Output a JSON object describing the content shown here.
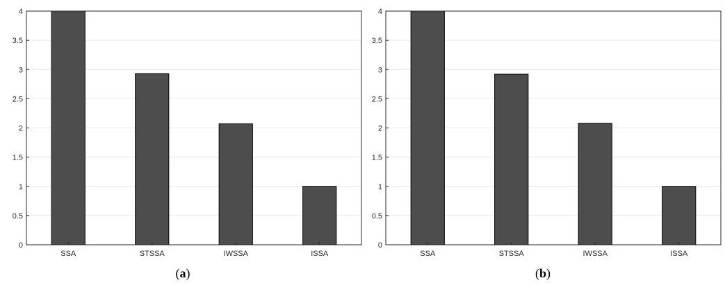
{
  "chart_data": [
    {
      "type": "bar",
      "panel_label": "a",
      "categories": [
        "SSA",
        "STSSA",
        "IWSSA",
        "ISSA"
      ],
      "values": [
        4.0,
        2.93,
        2.07,
        1.0
      ],
      "ylim": [
        0,
        4
      ],
      "yticks": [
        "0",
        "0.5",
        "1",
        "1.5",
        "2",
        "2.5",
        "3",
        "3.5",
        "4"
      ],
      "grid": true,
      "bar_color": "#4d4d4d"
    },
    {
      "type": "bar",
      "panel_label": "b",
      "categories": [
        "SSA",
        "STSSA",
        "IWSSA",
        "ISSA"
      ],
      "values": [
        4.0,
        2.92,
        2.08,
        1.0
      ],
      "ylim": [
        0,
        4
      ],
      "yticks": [
        "0",
        "0.5",
        "1",
        "1.5",
        "2",
        "2.5",
        "3",
        "3.5",
        "4"
      ],
      "grid": true,
      "bar_color": "#4d4d4d"
    }
  ]
}
